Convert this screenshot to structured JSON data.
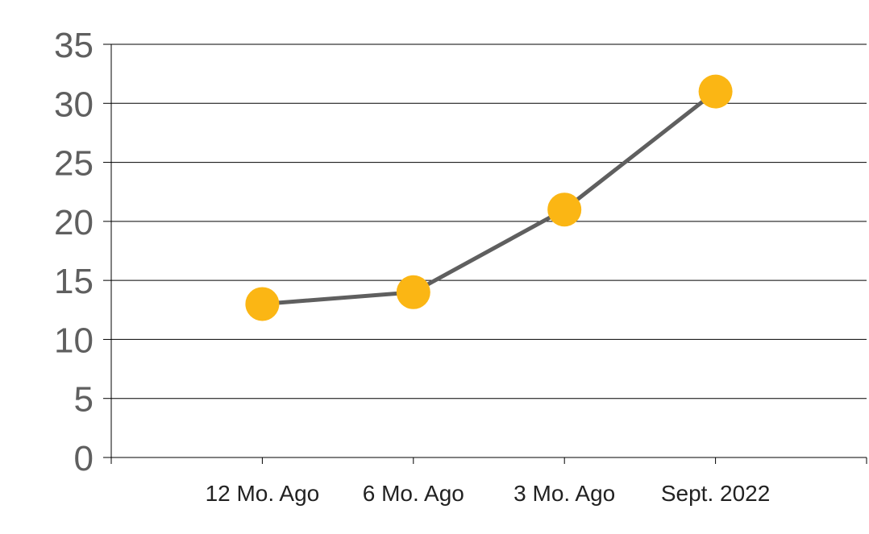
{
  "chart_data": {
    "type": "line",
    "categories": [
      "12 Mo. Ago",
      "6 Mo. Ago",
      "3 Mo. Ago",
      "Sept. 2022"
    ],
    "series": [
      {
        "values": [
          13,
          14,
          21,
          31
        ]
      }
    ],
    "y_ticks": [
      "0",
      "5",
      "10",
      "15",
      "20",
      "25",
      "30",
      "35"
    ],
    "ylim": [
      0,
      35
    ],
    "grid": "horizontal",
    "legend": "none",
    "colors": {
      "line": "#5f5f5f",
      "marker": "#fbb614",
      "grid": "#000000",
      "axis": "#000000"
    }
  }
}
